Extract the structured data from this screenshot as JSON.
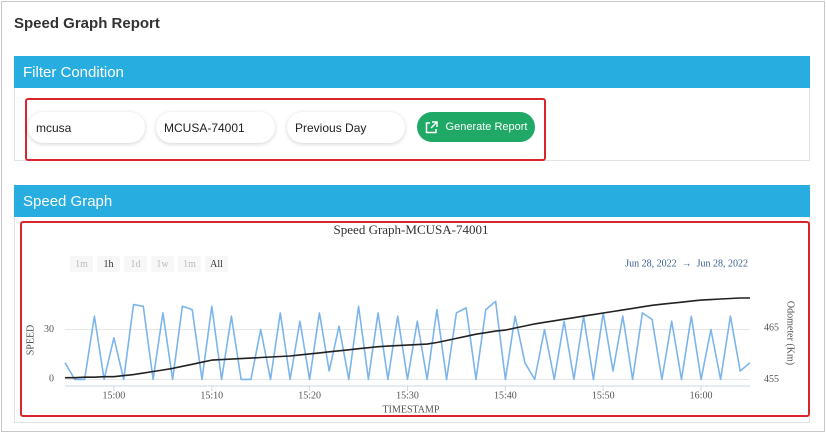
{
  "header": {
    "title": "Speed Graph Report"
  },
  "filter": {
    "title": "Filter Condition",
    "inputs": [
      "mcusa",
      "MCUSA-74001",
      "Previous Day"
    ],
    "button": "Generate Report"
  },
  "graph_panel": {
    "title": "Speed Graph"
  },
  "chart_data": {
    "type": "line",
    "title": "Speed Graph-MCUSA-74001",
    "range_buttons": [
      {
        "label": "1m",
        "enabled": false
      },
      {
        "label": "1h",
        "enabled": true
      },
      {
        "label": "1d",
        "enabled": false
      },
      {
        "label": "1w",
        "enabled": false
      },
      {
        "label": "1m",
        "enabled": false
      },
      {
        "label": "All",
        "enabled": true
      }
    ],
    "date_range": {
      "from": "Jun 28, 2022",
      "separator": "→",
      "to": "Jun 28, 2022"
    },
    "xlabel": "TIMESTAMP",
    "ylabel": "SPEED",
    "y2label": "Odometer (Km)",
    "x": [
      "14:55",
      "14:56",
      "14:57",
      "14:58",
      "14:59",
      "15:00",
      "15:01",
      "15:02",
      "15:03",
      "15:04",
      "15:05",
      "15:06",
      "15:07",
      "15:08",
      "15:09",
      "15:10",
      "15:11",
      "15:12",
      "15:13",
      "15:14",
      "15:15",
      "15:16",
      "15:17",
      "15:18",
      "15:19",
      "15:20",
      "15:21",
      "15:22",
      "15:23",
      "15:24",
      "15:25",
      "15:26",
      "15:27",
      "15:28",
      "15:29",
      "15:30",
      "15:31",
      "15:32",
      "15:33",
      "15:34",
      "15:35",
      "15:36",
      "15:37",
      "15:38",
      "15:39",
      "15:40",
      "15:41",
      "15:42",
      "15:43",
      "15:44",
      "15:45",
      "15:46",
      "15:47",
      "15:48",
      "15:49",
      "15:50",
      "15:51",
      "15:52",
      "15:53",
      "15:54",
      "15:55",
      "15:56",
      "15:57",
      "15:58",
      "15:59",
      "16:00",
      "16:01",
      "16:02",
      "16:03",
      "16:04",
      "16:05"
    ],
    "series": [
      {
        "color": "#7cb5ec",
        "values": [
          10,
          0,
          0,
          38,
          0,
          25,
          0,
          45,
          44,
          0,
          40,
          0,
          44,
          42,
          0,
          44,
          0,
          38,
          0,
          0,
          30,
          0,
          40,
          0,
          35,
          0,
          40,
          5,
          32,
          0,
          44,
          0,
          40,
          0,
          38,
          0,
          35,
          0,
          42,
          0,
          40,
          43,
          0,
          42,
          47,
          0,
          38,
          10,
          0,
          30,
          0,
          35,
          0,
          38,
          0,
          40,
          5,
          38,
          0,
          40,
          36,
          0,
          35,
          0,
          38,
          0,
          30,
          0,
          38,
          5,
          10
        ]
      },
      {
        "color": "#222222",
        "axis": "y2",
        "values": [
          455.4,
          455.4,
          455.5,
          455.5,
          455.6,
          455.6,
          455.8,
          456.0,
          456.3,
          456.6,
          456.9,
          457.2,
          457.6,
          458.0,
          458.4,
          458.8,
          458.9,
          459.0,
          459.1,
          459.2,
          459.3,
          459.4,
          459.5,
          459.6,
          459.8,
          460.0,
          460.2,
          460.4,
          460.6,
          460.8,
          461.0,
          461.2,
          461.4,
          461.5,
          461.6,
          461.7,
          461.8,
          461.9,
          462.2,
          462.6,
          463.0,
          463.4,
          463.8,
          464.1,
          464.4,
          464.6,
          465.0,
          465.4,
          465.8,
          466.1,
          466.4,
          466.7,
          467.0,
          467.3,
          467.6,
          467.9,
          468.2,
          468.5,
          468.8,
          469.1,
          469.4,
          469.6,
          469.8,
          470.0,
          470.2,
          470.4,
          470.5,
          470.6,
          470.7,
          470.8,
          470.8
        ]
      }
    ],
    "xlim": [
      "14:55",
      "16:05"
    ],
    "xticks": [
      "15:00",
      "15:10",
      "15:20",
      "15:30",
      "15:40",
      "15:50",
      "16:00"
    ],
    "ylim": [
      -4,
      58
    ],
    "yticks": [
      0,
      30
    ],
    "y2lim": [
      453.8,
      473.7
    ],
    "y2ticks": [
      455,
      465
    ],
    "grid": true
  }
}
